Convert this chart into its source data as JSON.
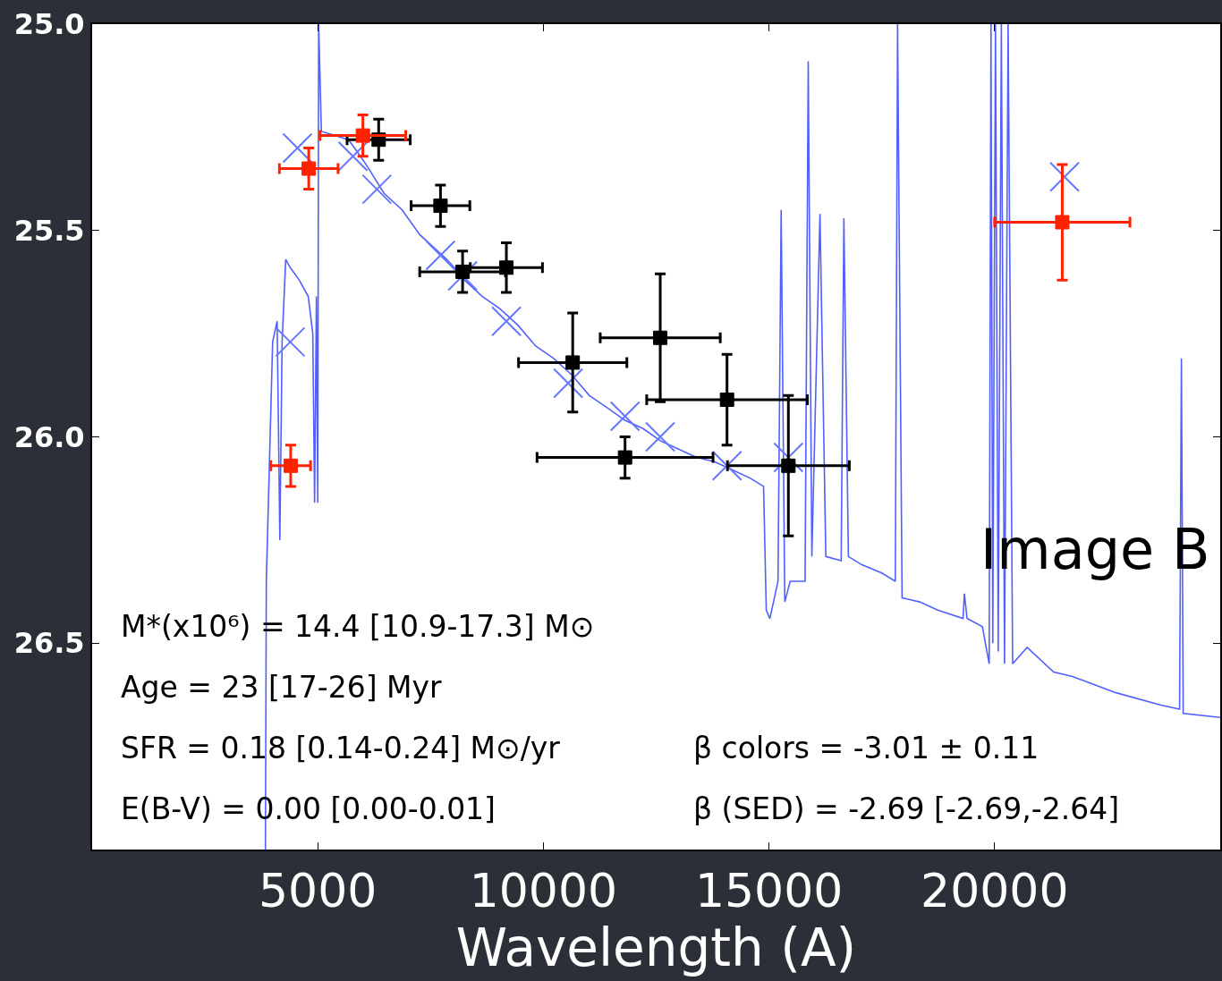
{
  "chart_data": {
    "type": "scatter",
    "xlabel": "Wavelength (A)",
    "xlim": [
      0,
      25000
    ],
    "xticks": [
      5000,
      10000,
      15000,
      20000
    ],
    "ylim": [
      27.0,
      25.0
    ],
    "yticks": [
      {
        "value": 25,
        "label": "25.0"
      },
      {
        "value": 25.5,
        "label": "25.5"
      },
      {
        "value": 26,
        "label": "26.0"
      },
      {
        "value": 26.5,
        "label": "26.5"
      }
    ],
    "grid": false,
    "series": [
      {
        "type": "line",
        "color": "#3344ff",
        "marker": "none",
        "line_style": "solid",
        "x": [
          3840,
          3860,
          4000,
          4100,
          4160,
          4210,
          4290,
          4390,
          4590,
          4790,
          4890,
          4930,
          4970,
          5000,
          5020,
          5080,
          5380,
          5680,
          5880,
          6070,
          6470,
          6870,
          7260,
          7860,
          8250,
          8650,
          9040,
          9440,
          9830,
          10230,
          10630,
          11020,
          11420,
          11810,
          12210,
          12600,
          13000,
          13400,
          13790,
          14190,
          14580,
          14880,
          14940,
          15020,
          15200,
          15270,
          15350,
          15470,
          15800,
          15870,
          15950,
          16130,
          16260,
          16600,
          16660,
          16760,
          17060,
          17500,
          17800,
          17850,
          17950,
          18340,
          18740,
          19300,
          19330,
          19390,
          19730,
          19880,
          19920,
          19960,
          20020,
          20080,
          20150,
          20220,
          20300,
          20400,
          20720,
          21310,
          21710,
          22690,
          23690,
          24100,
          24140,
          24180,
          25000
        ],
        "values": [
          27.0,
          26.35,
          25.77,
          25.72,
          26.25,
          25.77,
          25.57,
          25.59,
          25.62,
          25.66,
          25.75,
          26.16,
          25.66,
          26.16,
          25.0,
          25.26,
          25.27,
          25.28,
          25.31,
          25.34,
          25.41,
          25.45,
          25.51,
          25.57,
          25.62,
          25.66,
          25.69,
          25.73,
          25.78,
          25.81,
          25.85,
          25.9,
          25.93,
          25.96,
          25.98,
          26.01,
          26.03,
          26.05,
          26.06,
          26.08,
          26.1,
          26.12,
          26.42,
          26.44,
          26.35,
          25.45,
          26.4,
          26.35,
          26.35,
          25.09,
          26.29,
          25.46,
          26.29,
          26.3,
          25.47,
          26.29,
          26.31,
          26.33,
          26.35,
          25.0,
          26.39,
          26.4,
          26.42,
          26.44,
          26.38,
          26.44,
          26.46,
          26.55,
          25.0,
          26.5,
          25.0,
          26.52,
          25.0,
          26.55,
          25.0,
          26.55,
          26.51,
          26.57,
          26.58,
          26.62,
          26.65,
          26.66,
          25.81,
          26.67,
          26.68
        ]
      },
      {
        "type": "scatter",
        "color": "#6677ff",
        "marker": "cross",
        "x": [
          4390,
          4550,
          5780,
          6310,
          7720,
          8210,
          9180,
          10550,
          11810,
          12590,
          14070,
          15430,
          21550
        ],
        "values": [
          25.77,
          25.3,
          25.32,
          25.4,
          25.56,
          25.61,
          25.72,
          25.87,
          25.95,
          26.0,
          26.07,
          26.05,
          25.37
        ]
      },
      {
        "type": "scatter",
        "color": "#000000",
        "marker": "square",
        "x": [
          6350,
          7720,
          8210,
          9180,
          10650,
          12590,
          14070,
          11810,
          15430
        ],
        "values": [
          25.28,
          25.44,
          25.6,
          25.59,
          25.82,
          25.76,
          25.91,
          26.05,
          26.07
        ],
        "errors": [
          0.05,
          0.05,
          0.05,
          0.06,
          0.12,
          0.155,
          0.11,
          0.05,
          0.17
        ],
        "xerrors": [
          700,
          650,
          950,
          800,
          1200,
          1330,
          1780,
          1950,
          1350
        ]
      },
      {
        "type": "scatter",
        "color": "#ff2200",
        "marker": "square",
        "x": [
          4800,
          6000,
          4400,
          21500
        ],
        "values": [
          25.35,
          25.27,
          26.07,
          25.48
        ],
        "errors": [
          0.05,
          0.05,
          0.05,
          0.14
        ],
        "xerrors": [
          650,
          950,
          440,
          1500
        ]
      }
    ],
    "annotations": [
      "M*(x10⁶) = 14.4 [10.9-17.3] M⊙",
      "Age = 23 [17-26] Myr",
      "SFR = 0.18 [0.14-0.24] M⊙/yr",
      "E(B-V) = 0.00 [0.00-0.01]",
      "β colors = -3.01 ± 0.11",
      "β (SED) = -2.69 [-2.69,-2.64]",
      "Image B"
    ]
  }
}
